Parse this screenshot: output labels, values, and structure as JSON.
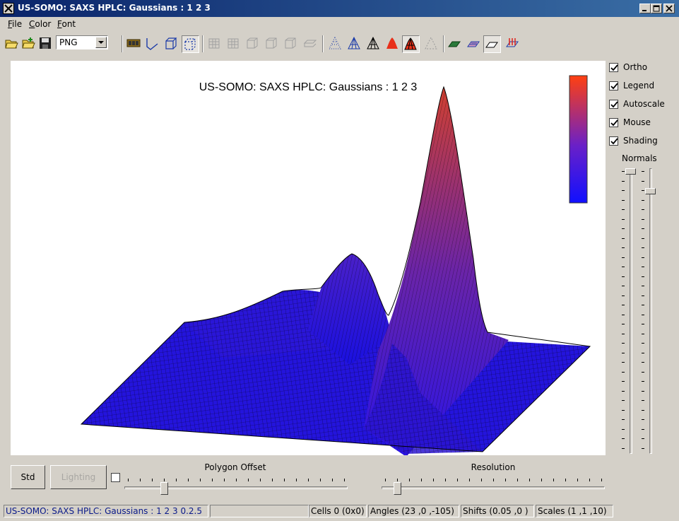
{
  "window": {
    "title": "US-SOMO: SAXS HPLC: Gaussians : 1 2 3"
  },
  "menu": {
    "items": [
      {
        "label": "File",
        "mnemonic": "F",
        "rest": "ile"
      },
      {
        "label": "Color",
        "mnemonic": "C",
        "rest": "olor"
      },
      {
        "label": "Font",
        "mnemonic": "F",
        "rest": "ont"
      }
    ]
  },
  "toolbar": {
    "export_format": "PNG",
    "tools": [
      "open-icon",
      "open-plus-icon",
      "save-icon",
      "film-icon",
      "axes-frame-icon",
      "box-frame-icon",
      "no-frame-icon",
      "grid-left-icon",
      "grid-right-icon",
      "grid-ceil-icon",
      "grid-floor-icon",
      "grid-front-icon",
      "grid-back-icon",
      "point-style-icon",
      "wireframe-style-icon",
      "hidden-line-style-icon",
      "filled-style-icon",
      "filled-mesh-style-icon",
      "no-data-style-icon",
      "floor-data-icon",
      "floor-iso-icon",
      "floor-empty-icon",
      "normals-icon"
    ]
  },
  "plot": {
    "title": "US-SOMO: SAXS HPLC: Gaussians : 1 2 3",
    "color_legend": {
      "from": "#1010ff",
      "to": "#ff4010"
    }
  },
  "options": {
    "ortho": {
      "label": "Ortho",
      "checked": true
    },
    "legend": {
      "label": "Legend",
      "checked": true
    },
    "autoscale": {
      "label": "Autoscale",
      "checked": true
    },
    "mouse": {
      "label": "Mouse",
      "checked": true
    },
    "shading": {
      "label": "Shading",
      "checked": true
    },
    "normals_label": "Normals"
  },
  "controls": {
    "std_label": "Std",
    "lighting_label": "Lighting",
    "lighting_checked": false,
    "polygon_offset_label": "Polygon Offset",
    "resolution_label": "Resolution"
  },
  "status": {
    "message": "US-SOMO: SAXS HPLC: Gaussians : 1 2 3 0.2.5",
    "cells": "Cells 0 (0x0)",
    "angles": "Angles (23 ,0 ,-105)",
    "shifts": "Shifts (0.05 ,0 )",
    "scales": "Scales (1 ,1 ,10)"
  }
}
